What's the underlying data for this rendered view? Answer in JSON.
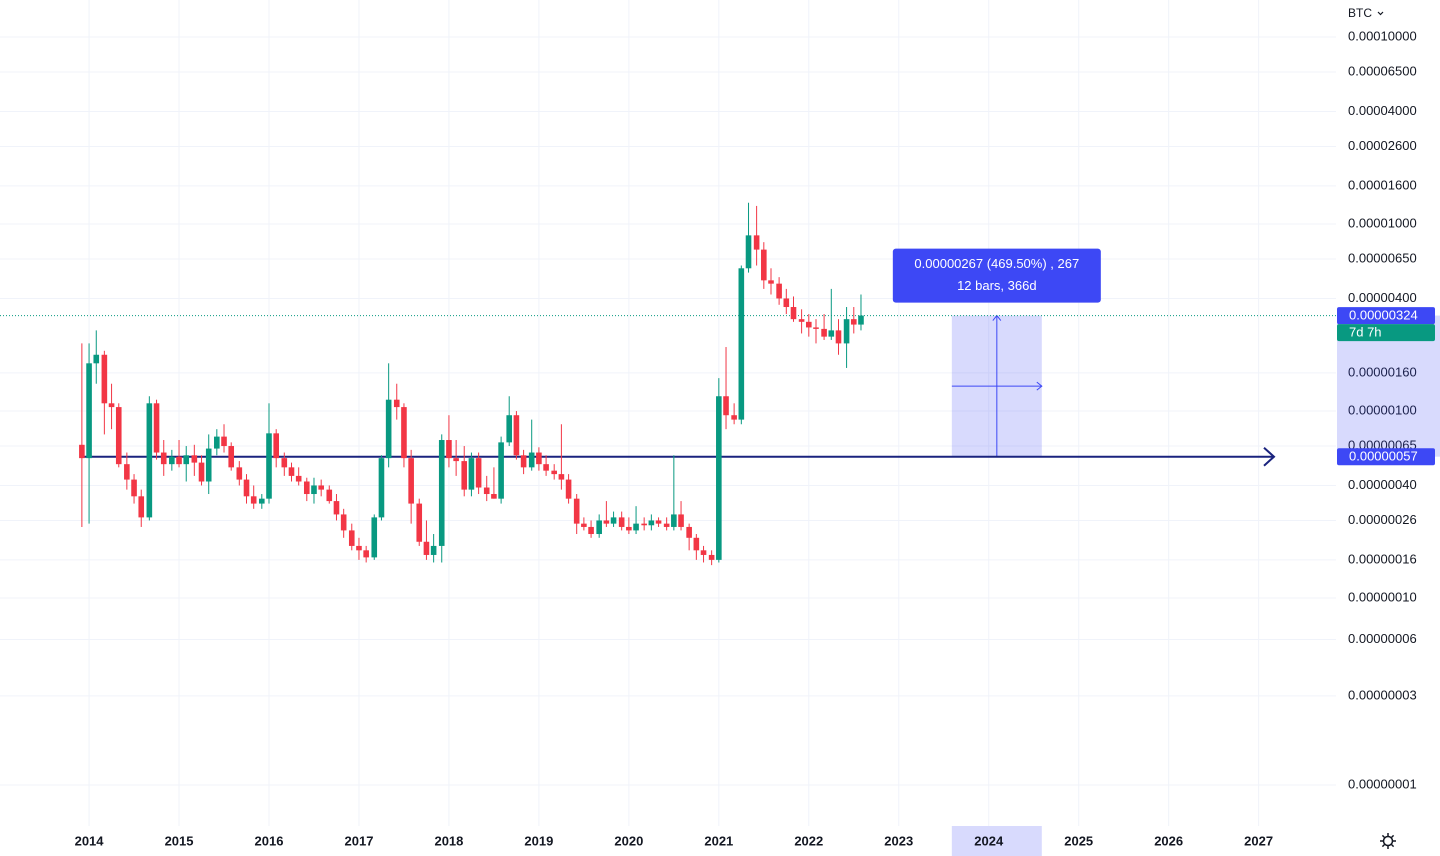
{
  "chart_data": {
    "type": "candlestick",
    "currency": "BTC",
    "log_scale": true,
    "grid": true,
    "up_color": "#089981",
    "down_color": "#f23645",
    "xlim": [
      2013.01,
      2027.86
    ],
    "xticks": [
      2014,
      2015,
      2016,
      2017,
      2018,
      2019,
      2020,
      2021,
      2022,
      2023,
      2024,
      2025,
      2026,
      2027
    ],
    "ylim": [
      6.04e-09,
      0.0001578
    ],
    "yticks": [
      {
        "value": 0.0001,
        "label": "0.00010000"
      },
      {
        "value": 6.5e-05,
        "label": "0.00006500"
      },
      {
        "value": 4e-05,
        "label": "0.00004000"
      },
      {
        "value": 2.6e-05,
        "label": "0.00002600"
      },
      {
        "value": 1.6e-05,
        "label": "0.00001600"
      },
      {
        "value": 1e-05,
        "label": "0.00001000"
      },
      {
        "value": 6.5e-06,
        "label": "0.00000650"
      },
      {
        "value": 4e-06,
        "label": "0.00000400"
      },
      {
        "value": 1.6e-06,
        "label": "0.00000160"
      },
      {
        "value": 1e-06,
        "label": "0.00000100"
      },
      {
        "value": 6.5e-07,
        "label": "0.00000065"
      },
      {
        "value": 4e-07,
        "label": "0.00000040"
      },
      {
        "value": 2.6e-07,
        "label": "0.00000026"
      },
      {
        "value": 1.6e-07,
        "label": "0.00000016"
      },
      {
        "value": 1e-07,
        "label": "0.00000010"
      },
      {
        "value": 6e-08,
        "label": "0.00000006"
      },
      {
        "value": 3e-08,
        "label": "0.00000003"
      },
      {
        "value": 1e-08,
        "label": "0.00000001"
      }
    ],
    "x": [
      2013.92,
      2014.0,
      2014.08,
      2014.17,
      2014.25,
      2014.33,
      2014.42,
      2014.5,
      2014.58,
      2014.67,
      2014.75,
      2014.83,
      2014.92,
      2015.0,
      2015.08,
      2015.17,
      2015.25,
      2015.33,
      2015.42,
      2015.5,
      2015.58,
      2015.67,
      2015.75,
      2015.83,
      2015.92,
      2016.0,
      2016.08,
      2016.17,
      2016.25,
      2016.33,
      2016.42,
      2016.5,
      2016.58,
      2016.67,
      2016.75,
      2016.83,
      2016.92,
      2017.0,
      2017.08,
      2017.17,
      2017.25,
      2017.33,
      2017.42,
      2017.5,
      2017.58,
      2017.67,
      2017.75,
      2017.83,
      2017.92,
      2018.0,
      2018.08,
      2018.17,
      2018.25,
      2018.33,
      2018.42,
      2018.5,
      2018.58,
      2018.67,
      2018.75,
      2018.83,
      2018.92,
      2019.0,
      2019.08,
      2019.17,
      2019.25,
      2019.33,
      2019.42,
      2019.5,
      2019.58,
      2019.67,
      2019.75,
      2019.83,
      2019.92,
      2020.0,
      2020.08,
      2020.17,
      2020.25,
      2020.33,
      2020.42,
      2020.5,
      2020.58,
      2020.67,
      2020.75,
      2020.83,
      2020.92,
      2021.0,
      2021.08,
      2021.17,
      2021.25,
      2021.33,
      2021.42,
      2021.5,
      2021.58,
      2021.67,
      2021.75,
      2021.83,
      2021.92,
      2022.0,
      2022.08,
      2022.17,
      2022.25,
      2022.33,
      2022.42,
      2022.5,
      2022.58
    ],
    "ohlc": [
      [
        6.6e-07,
        2.3e-06,
        2.4e-07,
        5.6e-07
      ],
      [
        5.6e-07,
        2.3e-06,
        2.5e-07,
        1.8e-06
      ],
      [
        1.8e-06,
        2.7e-06,
        1.4e-06,
        2e-06
      ],
      [
        2e-06,
        2.1e-06,
        7.5e-07,
        1.1e-06
      ],
      [
        1.1e-06,
        1.4e-06,
        8e-07,
        1.05e-06
      ],
      [
        1.05e-06,
        1.1e-06,
        5e-07,
        5.2e-07
      ],
      [
        5.2e-07,
        6e-07,
        3.8e-07,
        4.3e-07
      ],
      [
        4.3e-07,
        4.6e-07,
        3.2e-07,
        3.5e-07
      ],
      [
        3.5e-07,
        3.8e-07,
        2.4e-07,
        2.7e-07
      ],
      [
        2.7e-07,
        1.2e-06,
        2.6e-07,
        1.1e-06
      ],
      [
        1.1e-06,
        1.15e-06,
        5.5e-07,
        6e-07
      ],
      [
        6e-07,
        7e-07,
        4.5e-07,
        5.2e-07
      ],
      [
        5.2e-07,
        6.2e-07,
        4.8e-07,
        5.7e-07
      ],
      [
        5.7e-07,
        7e-07,
        5e-07,
        5.2e-07
      ],
      [
        5.2e-07,
        6.5e-07,
        4.2e-07,
        5.8e-07
      ],
      [
        5.8e-07,
        6.6e-07,
        4.5e-07,
        5.3e-07
      ],
      [
        5.3e-07,
        5.8e-07,
        4e-07,
        4.2e-07
      ],
      [
        4.2e-07,
        7.5e-07,
        3.6e-07,
        6.3e-07
      ],
      [
        6.3e-07,
        8e-07,
        5.8e-07,
        7.3e-07
      ],
      [
        7.3e-07,
        8.5e-07,
        6e-07,
        6.5e-07
      ],
      [
        6.5e-07,
        6.8e-07,
        4.8e-07,
        5e-07
      ],
      [
        5e-07,
        5.4e-07,
        4e-07,
        4.3e-07
      ],
      [
        4.3e-07,
        4.6e-07,
        3.2e-07,
        3.5e-07
      ],
      [
        3.5e-07,
        4e-07,
        3e-07,
        3.2e-07
      ],
      [
        3.2e-07,
        3.6e-07,
        3e-07,
        3.4e-07
      ],
      [
        3.4e-07,
        1.1e-06,
        3.2e-07,
        7.6e-07
      ],
      [
        7.6e-07,
        8e-07,
        5e-07,
        5.6e-07
      ],
      [
        5.6e-07,
        6e-07,
        4.5e-07,
        5e-07
      ],
      [
        5e-07,
        5.3e-07,
        4.2e-07,
        4.5e-07
      ],
      [
        4.5e-07,
        5e-07,
        4e-07,
        4.2e-07
      ],
      [
        4.2e-07,
        4.4e-07,
        3.3e-07,
        3.6e-07
      ],
      [
        3.6e-07,
        4.4e-07,
        3.2e-07,
        4e-07
      ],
      [
        4e-07,
        4.3e-07,
        3.5e-07,
        3.8e-07
      ],
      [
        3.8e-07,
        4e-07,
        3.2e-07,
        3.3e-07
      ],
      [
        3.3e-07,
        3.6e-07,
        2.6e-07,
        2.8e-07
      ],
      [
        2.8e-07,
        3e-07,
        2.1e-07,
        2.3e-07
      ],
      [
        2.3e-07,
        2.5e-07,
        1.8e-07,
        1.9e-07
      ],
      [
        1.9e-07,
        2.1e-07,
        1.6e-07,
        1.8e-07
      ],
      [
        1.8e-07,
        1.9e-07,
        1.55e-07,
        1.65e-07
      ],
      [
        1.65e-07,
        2.8e-07,
        1.6e-07,
        2.7e-07
      ],
      [
        2.7e-07,
        5.8e-07,
        2.6e-07,
        5.6e-07
      ],
      [
        5.6e-07,
        1.8e-06,
        5e-07,
        1.15e-06
      ],
      [
        1.15e-06,
        1.4e-06,
        9e-07,
        1.05e-06
      ],
      [
        1.05e-06,
        1.1e-06,
        5e-07,
        5.6e-07
      ],
      [
        5.6e-07,
        6.2e-07,
        2.5e-07,
        3.2e-07
      ],
      [
        3.2e-07,
        3.4e-07,
        1.9e-07,
        2e-07
      ],
      [
        2e-07,
        2.6e-07,
        1.6e-07,
        1.7e-07
      ],
      [
        1.7e-07,
        2.2e-07,
        1.55e-07,
        1.9e-07
      ],
      [
        1.9e-07,
        7.5e-07,
        1.55e-07,
        7e-07
      ],
      [
        7e-07,
        9.5e-07,
        5e-07,
        5.6e-07
      ],
      [
        5.6e-07,
        7e-07,
        4.5e-07,
        5.4e-07
      ],
      [
        5.4e-07,
        6.5e-07,
        3.5e-07,
        3.8e-07
      ],
      [
        3.8e-07,
        6e-07,
        3.5e-07,
        5.6e-07
      ],
      [
        5.6e-07,
        6e-07,
        3.6e-07,
        3.9e-07
      ],
      [
        3.9e-07,
        4.5e-07,
        3.3e-07,
        3.6e-07
      ],
      [
        3.6e-07,
        5e-07,
        3.4e-07,
        3.4e-07
      ],
      [
        3.4e-07,
        7.3e-07,
        3.2e-07,
        6.8e-07
      ],
      [
        6.8e-07,
        1.2e-06,
        6.5e-07,
        9.5e-07
      ],
      [
        9.5e-07,
        1e-06,
        5.5e-07,
        5.8e-07
      ],
      [
        5.8e-07,
        6.2e-07,
        4.6e-07,
        5e-07
      ],
      [
        5e-07,
        9e-07,
        4.8e-07,
        6e-07
      ],
      [
        6e-07,
        6.4e-07,
        4.8e-07,
        5.2e-07
      ],
      [
        5.2e-07,
        5.8e-07,
        4.5e-07,
        4.8e-07
      ],
      [
        4.8e-07,
        5.2e-07,
        4.3e-07,
        4.6e-07
      ],
      [
        4.6e-07,
        8.5e-07,
        3.8e-07,
        4.3e-07
      ],
      [
        4.3e-07,
        4.6e-07,
        3.2e-07,
        3.4e-07
      ],
      [
        3.4e-07,
        3.6e-07,
        2.2e-07,
        2.5e-07
      ],
      [
        2.5e-07,
        2.7e-07,
        2.3e-07,
        2.4e-07
      ],
      [
        2.4e-07,
        2.6e-07,
        2.1e-07,
        2.2e-07
      ],
      [
        2.2e-07,
        2.8e-07,
        2.1e-07,
        2.6e-07
      ],
      [
        2.6e-07,
        3.3e-07,
        2.4e-07,
        2.5e-07
      ],
      [
        2.5e-07,
        2.9e-07,
        2.4e-07,
        2.7e-07
      ],
      [
        2.7e-07,
        2.9e-07,
        2.3e-07,
        2.4e-07
      ],
      [
        2.4e-07,
        2.7e-07,
        2.2e-07,
        2.3e-07
      ],
      [
        2.3e-07,
        3.1e-07,
        2.2e-07,
        2.5e-07
      ],
      [
        2.5e-07,
        2.7e-07,
        2.3e-07,
        2.45e-07
      ],
      [
        2.45e-07,
        2.8e-07,
        2.3e-07,
        2.6e-07
      ],
      [
        2.6e-07,
        2.7e-07,
        2.4e-07,
        2.5e-07
      ],
      [
        2.5e-07,
        2.7e-07,
        2.3e-07,
        2.4e-07
      ],
      [
        2.4e-07,
        5.8e-07,
        2.3e-07,
        2.8e-07
      ],
      [
        2.8e-07,
        3.3e-07,
        2.3e-07,
        2.4e-07
      ],
      [
        2.4e-07,
        2.5e-07,
        1.8e-07,
        2.1e-07
      ],
      [
        2.1e-07,
        2.2e-07,
        1.6e-07,
        1.8e-07
      ],
      [
        1.8e-07,
        1.9e-07,
        1.55e-07,
        1.7e-07
      ],
      [
        1.7e-07,
        1.8e-07,
        1.5e-07,
        1.6e-07
      ],
      [
        1.6e-07,
        1.5e-06,
        1.55e-07,
        1.2e-06
      ],
      [
        1.2e-06,
        2.2e-06,
        8e-07,
        9.5e-07
      ],
      [
        9.5e-07,
        1.1e-06,
        8.5e-07,
        9e-07
      ],
      [
        9e-07,
        6e-06,
        8.5e-07,
        5.8e-06
      ],
      [
        5.8e-06,
        1.3e-05,
        5.5e-06,
        8.7e-06
      ],
      [
        8.7e-06,
        1.25e-05,
        6e-06,
        7.3e-06
      ],
      [
        7.3e-06,
        8e-06,
        4.5e-06,
        5e-06
      ],
      [
        5e-06,
        5.8e-06,
        4.2e-06,
        4.8e-06
      ],
      [
        4.8e-06,
        5.2e-06,
        3.7e-06,
        4e-06
      ],
      [
        4e-06,
        4.5e-06,
        3.3e-06,
        3.6e-06
      ],
      [
        3.6e-06,
        4.1e-06,
        3e-06,
        3.1e-06
      ],
      [
        3.1e-06,
        3.5e-06,
        2.6e-06,
        3e-06
      ],
      [
        3e-06,
        3.3e-06,
        2.5e-06,
        2.8e-06
      ],
      [
        2.8e-06,
        3.1e-06,
        2.3e-06,
        2.75e-06
      ],
      [
        2.75e-06,
        3.3e-06,
        2.4e-06,
        2.5e-06
      ],
      [
        2.5e-06,
        4.5e-06,
        2.4e-06,
        2.7e-06
      ],
      [
        2.7e-06,
        3.1e-06,
        2e-06,
        2.3e-06
      ],
      [
        2.3e-06,
        3.6e-06,
        1.7e-06,
        3.1e-06
      ],
      [
        3.1e-06,
        3.6e-06,
        2.6e-06,
        2.9e-06
      ],
      [
        2.9e-06,
        4.2e-06,
        2.7e-06,
        3.24e-06
      ]
    ],
    "last_price": {
      "value": 3.24e-06,
      "label": "0.00000324",
      "countdown": "7d 7h",
      "color": "#089981"
    },
    "horizontal_line": {
      "value": 5.7e-07,
      "label": "0.00000057",
      "color": "#1a237e"
    },
    "measure": {
      "x": [
        2023.59,
        2024.59
      ],
      "y": [
        5.7e-07,
        3.24e-06
      ],
      "text": "0.00000267 (469.50%) , 267",
      "subtext": "12 bars, 366d",
      "color": "#3d48f5"
    }
  }
}
